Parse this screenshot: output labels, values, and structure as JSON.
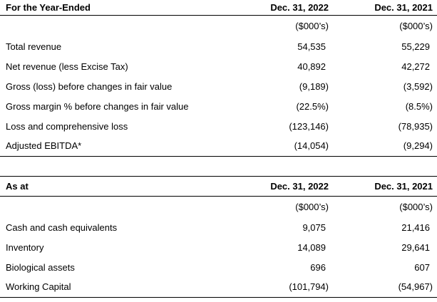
{
  "colors": {
    "text": "#000000",
    "background": "#ffffff",
    "rule": "#000000"
  },
  "tables": [
    {
      "title": "For the Year-Ended",
      "columns": [
        "Dec. 31, 2022",
        "Dec. 31, 2021"
      ],
      "units": [
        "($000’s)",
        "($000’s)"
      ],
      "rows": [
        {
          "label": "Total revenue",
          "values": [
            "54,535",
            "55,229"
          ]
        },
        {
          "label": "Net revenue (less Excise Tax)",
          "values": [
            "40,892",
            "42,272"
          ]
        },
        {
          "label": "Gross (loss) before changes in fair value",
          "values": [
            "(9,189)",
            "(3,592)"
          ]
        },
        {
          "label": "Gross margin % before changes in fair value",
          "values": [
            "(22.5%)",
            "(8.5%)"
          ]
        },
        {
          "label": "Loss and comprehensive loss",
          "values": [
            "(123,146)",
            "(78,935)"
          ]
        },
        {
          "label": "Adjusted EBITDA*",
          "values": [
            "(14,054)",
            "(9,294)"
          ]
        }
      ]
    },
    {
      "title": "As at",
      "columns": [
        "Dec. 31, 2022",
        "Dec. 31, 2021"
      ],
      "units": [
        "($000’s)",
        "($000’s)"
      ],
      "rows": [
        {
          "label": "Cash and cash equivalents",
          "values": [
            "9,075",
            "21,416"
          ]
        },
        {
          "label": "Inventory",
          "values": [
            "14,089",
            "29,641"
          ]
        },
        {
          "label": "Biological assets",
          "values": [
            "696",
            "607"
          ]
        },
        {
          "label": "Working Capital",
          "values": [
            "(101,794)",
            "(54,967)"
          ]
        }
      ]
    }
  ]
}
